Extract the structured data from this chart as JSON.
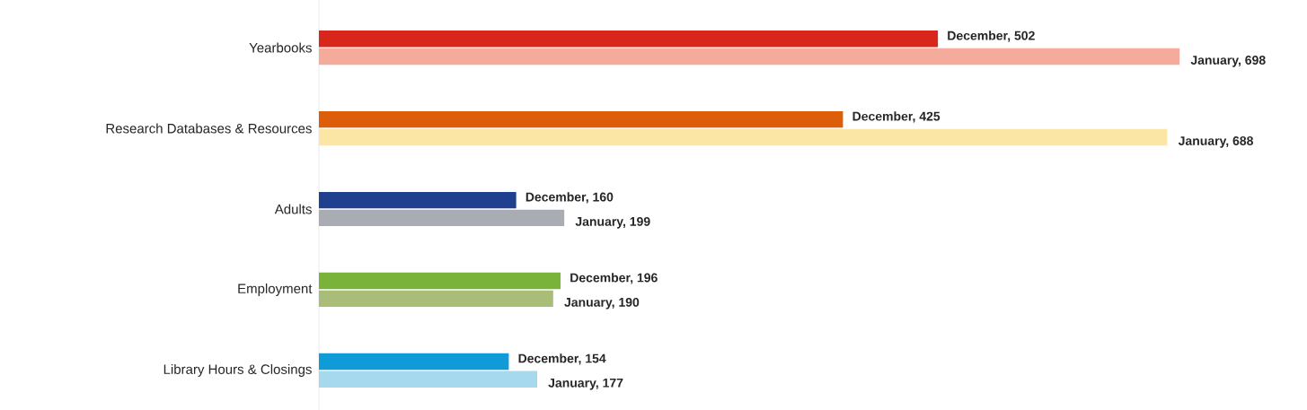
{
  "chart_data": {
    "type": "bar",
    "orientation": "horizontal",
    "categories": [
      "Yearbooks",
      "Research Databases & Resources",
      "Adults",
      "Employment",
      "Library Hours & Closings"
    ],
    "series": [
      {
        "values": [
          502,
          425,
          160,
          196,
          154
        ],
        "value_labels": [
          "December, 502",
          "December, 425",
          "December, 160",
          "December, 196",
          "December, 154"
        ],
        "colors": [
          "#d9261c",
          "#dc5d0a",
          "#1f3f8f",
          "#7ab33a",
          "#0f9bd7"
        ]
      },
      {
        "values": [
          698,
          688,
          199,
          190,
          177
        ],
        "value_labels": [
          "January, 698",
          "January, 688",
          "January, 199",
          "January, 190",
          "January, 177"
        ],
        "colors": [
          "#f4ab9c",
          "#fbe6a6",
          "#a9adb3",
          "#a9bd78",
          "#a6d8ee"
        ]
      }
    ]
  }
}
